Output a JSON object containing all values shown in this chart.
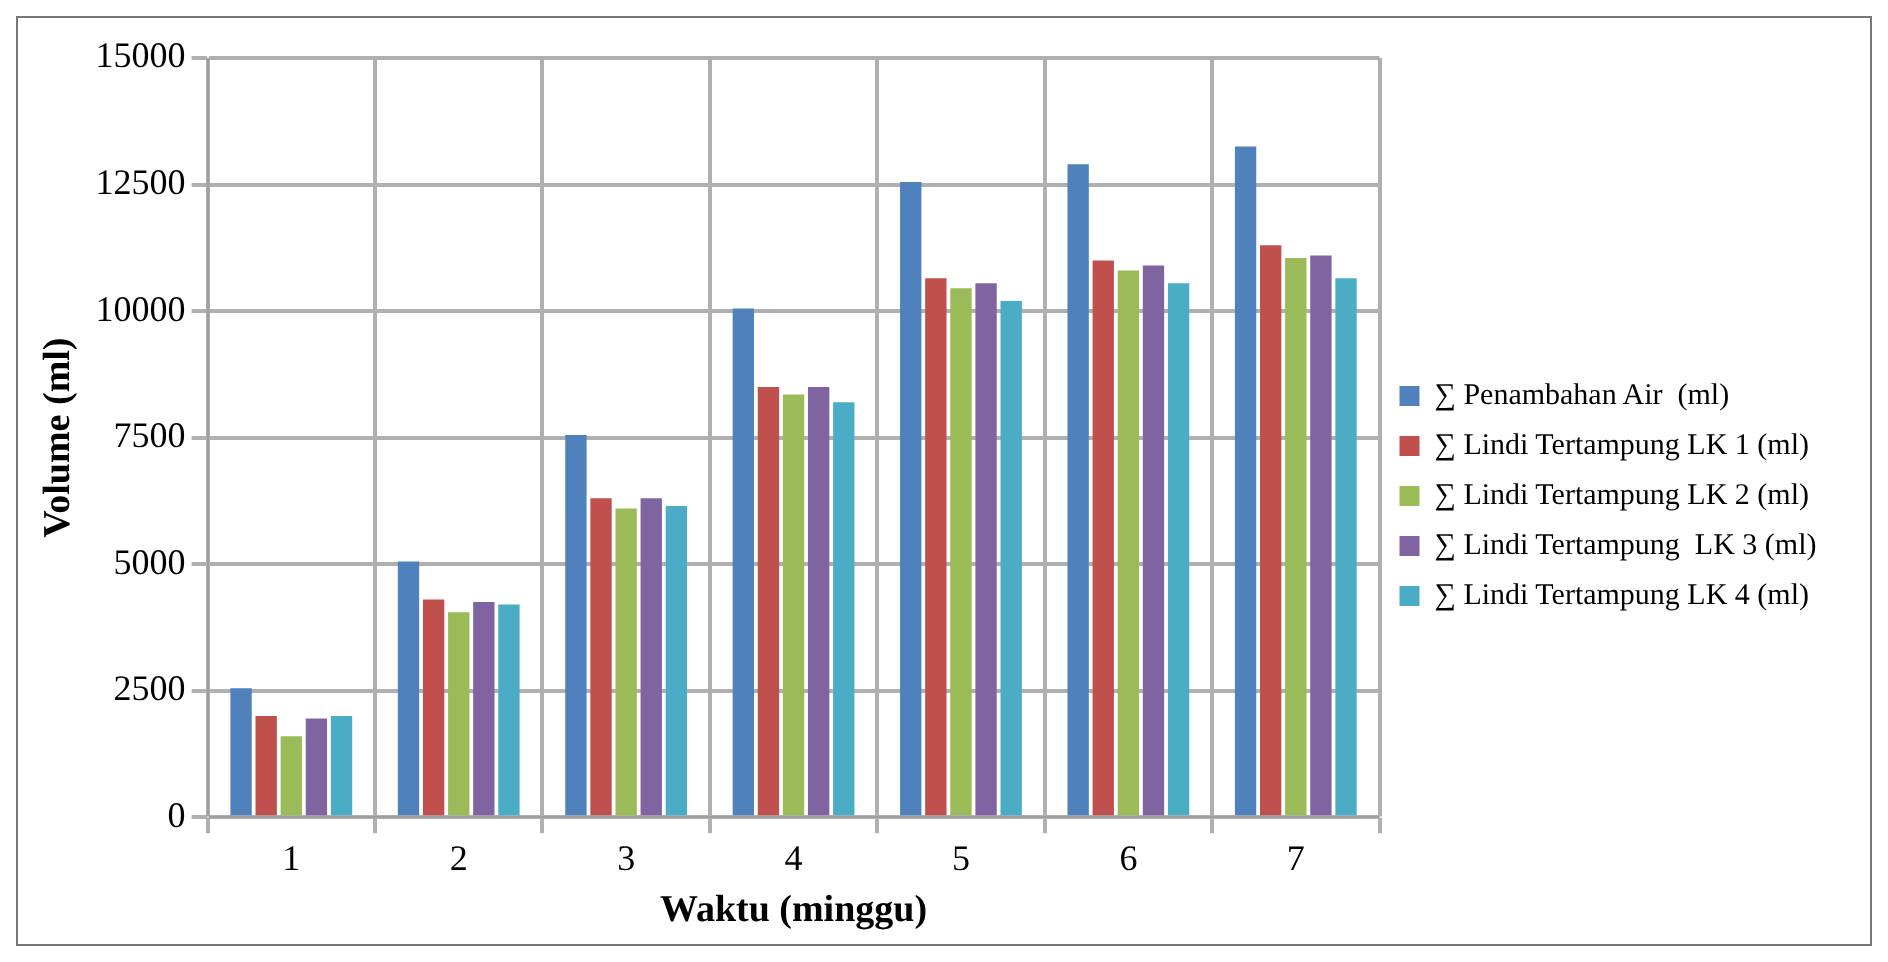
{
  "chart_data": {
    "type": "bar",
    "xlabel": "Waktu (minggu)",
    "ylabel": "Volume (ml)",
    "categories": [
      "1",
      "2",
      "3",
      "4",
      "5",
      "6",
      "7"
    ],
    "series": [
      {
        "name": "∑ Penambahan Air  (ml)",
        "color": "#4f81bd",
        "values": [
          2550,
          5050,
          7550,
          10050,
          12550,
          12900,
          13250
        ]
      },
      {
        "name": "∑ Lindi Tertampung LK 1 (ml)",
        "color": "#c0504d",
        "values": [
          2000,
          4300,
          6300,
          8500,
          10650,
          11000,
          11300
        ]
      },
      {
        "name": "∑ Lindi Tertampung LK 2 (ml)",
        "color": "#9bbb59",
        "values": [
          1600,
          4050,
          6100,
          8350,
          10450,
          10800,
          11050
        ]
      },
      {
        "name": "∑ Lindi Tertampung  LK 3 (ml)",
        "color": "#8064a2",
        "values": [
          1950,
          4250,
          6300,
          8500,
          10550,
          10900,
          11100
        ]
      },
      {
        "name": "∑ Lindi Tertampung LK 4 (ml)",
        "color": "#4bacc6",
        "values": [
          2000,
          4200,
          6150,
          8200,
          10200,
          10550,
          10650
        ]
      }
    ],
    "ylim": [
      0,
      15000
    ],
    "yticks": [
      0,
      2500,
      5000,
      7500,
      10000,
      12500,
      15000
    ],
    "grid": true,
    "legend": "right"
  }
}
